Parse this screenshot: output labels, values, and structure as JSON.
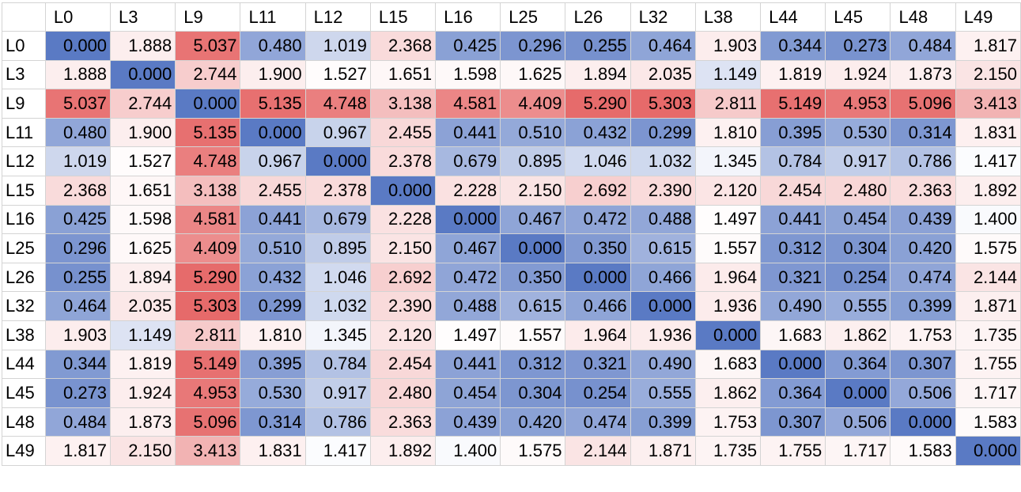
{
  "chart_data": {
    "type": "heatmap",
    "title": "",
    "xlabel": "",
    "ylabel": "",
    "labels": [
      "L0",
      "L3",
      "L9",
      "L11",
      "L12",
      "L15",
      "L16",
      "L25",
      "L26",
      "L32",
      "L38",
      "L44",
      "L45",
      "L48",
      "L49"
    ],
    "matrix": [
      [
        "0.000",
        "1.888",
        "5.037",
        "0.480",
        "1.019",
        "2.368",
        "0.425",
        "0.296",
        "0.255",
        "0.464",
        "1.903",
        "0.344",
        "0.273",
        "0.484",
        "1.817"
      ],
      [
        "1.888",
        "0.000",
        "2.744",
        "1.900",
        "1.527",
        "1.651",
        "1.598",
        "1.625",
        "1.894",
        "2.035",
        "1.149",
        "1.819",
        "1.924",
        "1.873",
        "2.150"
      ],
      [
        "5.037",
        "2.744",
        "0.000",
        "5.135",
        "4.748",
        "3.138",
        "4.581",
        "4.409",
        "5.290",
        "5.303",
        "2.811",
        "5.149",
        "4.953",
        "5.096",
        "3.413"
      ],
      [
        "0.480",
        "1.900",
        "5.135",
        "0.000",
        "0.967",
        "2.455",
        "0.441",
        "0.510",
        "0.432",
        "0.299",
        "1.810",
        "0.395",
        "0.530",
        "0.314",
        "1.831"
      ],
      [
        "1.019",
        "1.527",
        "4.748",
        "0.967",
        "0.000",
        "2.378",
        "0.679",
        "0.895",
        "1.046",
        "1.032",
        "1.345",
        "0.784",
        "0.917",
        "0.786",
        "1.417"
      ],
      [
        "2.368",
        "1.651",
        "3.138",
        "2.455",
        "2.378",
        "0.000",
        "2.228",
        "2.150",
        "2.692",
        "2.390",
        "2.120",
        "2.454",
        "2.480",
        "2.363",
        "1.892"
      ],
      [
        "0.425",
        "1.598",
        "4.581",
        "0.441",
        "0.679",
        "2.228",
        "0.000",
        "0.467",
        "0.472",
        "0.488",
        "1.497",
        "0.441",
        "0.454",
        "0.439",
        "1.400"
      ],
      [
        "0.296",
        "1.625",
        "4.409",
        "0.510",
        "0.895",
        "2.150",
        "0.467",
        "0.000",
        "0.350",
        "0.615",
        "1.557",
        "0.312",
        "0.304",
        "0.420",
        "1.575"
      ],
      [
        "0.255",
        "1.894",
        "5.290",
        "0.432",
        "1.046",
        "2.692",
        "0.472",
        "0.350",
        "0.000",
        "0.466",
        "1.964",
        "0.321",
        "0.254",
        "0.474",
        "2.144"
      ],
      [
        "0.464",
        "2.035",
        "5.303",
        "0.299",
        "1.032",
        "2.390",
        "0.488",
        "0.615",
        "0.466",
        "0.000",
        "1.936",
        "0.490",
        "0.555",
        "0.399",
        "1.871"
      ],
      [
        "1.903",
        "1.149",
        "2.811",
        "1.810",
        "1.345",
        "2.120",
        "1.497",
        "1.557",
        "1.964",
        "1.936",
        "0.000",
        "1.683",
        "1.862",
        "1.753",
        "1.735"
      ],
      [
        "0.344",
        "1.819",
        "5.149",
        "0.395",
        "0.784",
        "2.454",
        "0.441",
        "0.312",
        "0.321",
        "0.490",
        "1.683",
        "0.000",
        "0.364",
        "0.307",
        "1.755"
      ],
      [
        "0.273",
        "1.924",
        "4.953",
        "0.530",
        "0.917",
        "2.480",
        "0.454",
        "0.304",
        "0.254",
        "0.555",
        "1.862",
        "0.364",
        "0.000",
        "0.506",
        "1.717"
      ],
      [
        "0.484",
        "1.873",
        "5.096",
        "0.314",
        "0.786",
        "2.363",
        "0.439",
        "0.420",
        "0.474",
        "0.399",
        "1.753",
        "0.307",
        "0.506",
        "0.000",
        "1.583"
      ],
      [
        "1.817",
        "2.150",
        "3.413",
        "1.831",
        "1.417",
        "1.892",
        "1.400",
        "1.575",
        "2.144",
        "1.871",
        "1.735",
        "1.755",
        "1.717",
        "1.583",
        "0.000"
      ]
    ],
    "color_scale": {
      "low_color": "#5a7ac4",
      "mid_color": "#ffffff",
      "high_color": "#e66a6a",
      "low_value": 0.0,
      "mid_value": 1.45,
      "high_value": 5.303
    }
  }
}
